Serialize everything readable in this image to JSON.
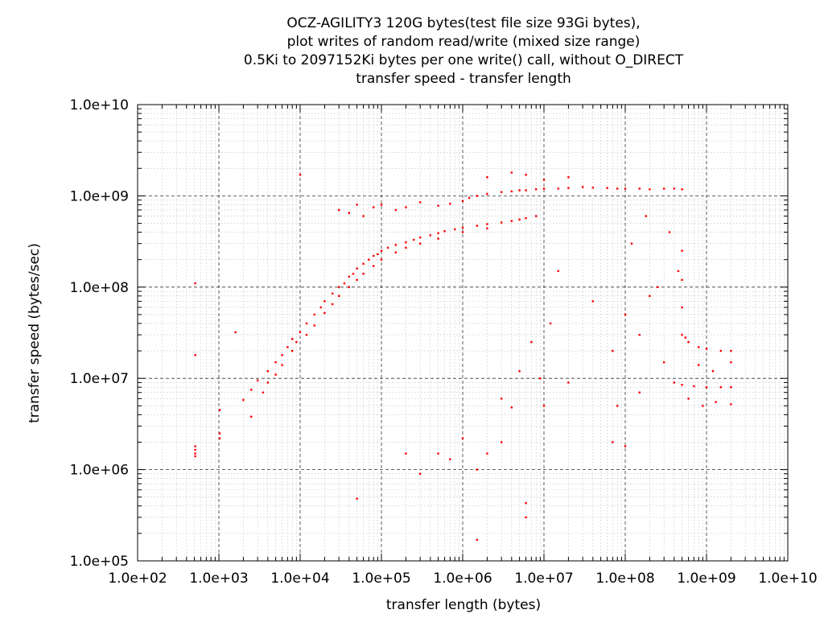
{
  "chart_data": {
    "type": "scatter",
    "title_lines": [
      "OCZ-AGILITY3 120G bytes(test file size 93Gi bytes),",
      "plot writes of random read/write (mixed size range)",
      "0.5Ki to 2097152Ki bytes per one write() call, without O_DIRECT",
      "transfer speed - transfer length"
    ],
    "xlabel": "transfer length (bytes)",
    "ylabel": "transfer speed (bytes/sec)",
    "x_scale": "log",
    "y_scale": "log",
    "xlim": [
      100,
      10000000000
    ],
    "ylim": [
      100000,
      10000000000
    ],
    "x_tick_values": [
      100,
      1000,
      10000,
      100000,
      1000000,
      10000000,
      100000000,
      1000000000,
      10000000000
    ],
    "x_tick_labels": [
      "1.0e+02",
      "1.0e+03",
      "1.0e+04",
      "1.0e+05",
      "1.0e+06",
      "1.0e+07",
      "1.0e+08",
      "1.0e+09",
      "1.0e+10"
    ],
    "y_tick_values": [
      100000,
      1000000,
      10000000,
      100000000,
      1000000000,
      10000000000
    ],
    "y_tick_labels": [
      "1.0e+05",
      "1.0e+06",
      "1.0e+07",
      "1.0e+08",
      "1.0e+09",
      "1.0e+10"
    ],
    "grid": true,
    "marker_color": "#ff0000",
    "series": [
      {
        "points": [
          [
            512,
            110000000
          ],
          [
            512,
            18000000
          ],
          [
            512,
            1800000
          ],
          [
            512,
            1650000
          ],
          [
            512,
            1500000
          ],
          [
            512,
            1400000
          ],
          [
            1024,
            4500000
          ],
          [
            1024,
            2500000
          ],
          [
            1024,
            2200000
          ],
          [
            1600,
            32000000
          ],
          [
            2000,
            5800000
          ],
          [
            2500,
            7500000
          ],
          [
            2500,
            3800000
          ],
          [
            3000,
            9500000
          ],
          [
            3500,
            7000000
          ],
          [
            4000,
            12000000
          ],
          [
            4000,
            9000000
          ],
          [
            5000,
            15000000
          ],
          [
            5000,
            11000000
          ],
          [
            6000,
            18000000
          ],
          [
            6000,
            14000000
          ],
          [
            7000,
            22000000
          ],
          [
            8000,
            27000000
          ],
          [
            8000,
            20000000
          ],
          [
            9000,
            25000000
          ],
          [
            10000,
            1700000000
          ],
          [
            10000,
            32000000
          ],
          [
            12000,
            40000000
          ],
          [
            12000,
            30000000
          ],
          [
            15000,
            50000000
          ],
          [
            15000,
            38000000
          ],
          [
            18000,
            60000000
          ],
          [
            20000,
            70000000
          ],
          [
            20000,
            52000000
          ],
          [
            25000,
            85000000
          ],
          [
            25000,
            65000000
          ],
          [
            30000,
            100000000
          ],
          [
            30000,
            80000000
          ],
          [
            35000,
            110000000
          ],
          [
            40000,
            130000000
          ],
          [
            40000,
            100000000
          ],
          [
            45000,
            140000000
          ],
          [
            50000,
            160000000
          ],
          [
            50000,
            120000000
          ],
          [
            60000,
            180000000
          ],
          [
            60000,
            140000000
          ],
          [
            70000,
            200000000
          ],
          [
            80000,
            220000000
          ],
          [
            80000,
            170000000
          ],
          [
            90000,
            230000000
          ],
          [
            100000,
            250000000
          ],
          [
            100000,
            200000000
          ],
          [
            120000,
            270000000
          ],
          [
            150000,
            290000000
          ],
          [
            150000,
            240000000
          ],
          [
            200000,
            310000000
          ],
          [
            200000,
            270000000
          ],
          [
            250000,
            330000000
          ],
          [
            300000,
            350000000
          ],
          [
            300000,
            300000000
          ],
          [
            400000,
            370000000
          ],
          [
            500000,
            390000000
          ],
          [
            500000,
            340000000
          ],
          [
            600000,
            410000000
          ],
          [
            800000,
            430000000
          ],
          [
            1000000,
            450000000
          ],
          [
            1000000,
            400000000
          ],
          [
            1500000,
            470000000
          ],
          [
            2000000,
            490000000
          ],
          [
            2000000,
            440000000
          ],
          [
            3000000,
            510000000
          ],
          [
            4000000,
            530000000
          ],
          [
            5000000,
            550000000
          ],
          [
            6000000,
            570000000
          ],
          [
            8000000,
            600000000
          ],
          [
            30000,
            700000000
          ],
          [
            40000,
            650000000
          ],
          [
            50000,
            800000000
          ],
          [
            60000,
            600000000
          ],
          [
            80000,
            750000000
          ],
          [
            100000,
            800000000
          ],
          [
            150000,
            700000000
          ],
          [
            200000,
            750000000
          ],
          [
            300000,
            850000000
          ],
          [
            500000,
            780000000
          ],
          [
            700000,
            820000000
          ],
          [
            1000000,
            880000000
          ],
          [
            1200000,
            950000000
          ],
          [
            1500000,
            1000000000
          ],
          [
            2000000,
            1050000000
          ],
          [
            3000000,
            1100000000
          ],
          [
            4000000,
            1120000000
          ],
          [
            5000000,
            1150000000
          ],
          [
            6000000,
            1150000000
          ],
          [
            8000000,
            1180000000
          ],
          [
            10000000,
            1200000000
          ],
          [
            15000000,
            1200000000
          ],
          [
            20000000,
            1220000000
          ],
          [
            30000000,
            1250000000
          ],
          [
            40000000,
            1230000000
          ],
          [
            60000000,
            1220000000
          ],
          [
            80000000,
            1200000000
          ],
          [
            100000000,
            1200000000
          ],
          [
            150000000,
            1200000000
          ],
          [
            200000000,
            1180000000
          ],
          [
            300000000,
            1200000000
          ],
          [
            400000000,
            1200000000
          ],
          [
            500000000,
            1180000000
          ],
          [
            2000000,
            1600000000
          ],
          [
            4000000,
            1800000000
          ],
          [
            6000000,
            1700000000
          ],
          [
            10000000,
            1500000000
          ],
          [
            20000000,
            1600000000
          ],
          [
            500000000,
            250000000
          ],
          [
            500000000,
            120000000
          ],
          [
            500000000,
            60000000
          ],
          [
            500000000,
            30000000
          ],
          [
            550000000,
            28000000
          ],
          [
            600000000,
            25000000
          ],
          [
            800000000,
            22000000
          ],
          [
            1000000000,
            21000000
          ],
          [
            1500000000,
            20000000
          ],
          [
            2000000000,
            20000000
          ],
          [
            400000000,
            9000000
          ],
          [
            500000000,
            8500000
          ],
          [
            700000000,
            8200000
          ],
          [
            1000000000,
            8000000
          ],
          [
            1500000000,
            8000000
          ],
          [
            2000000000,
            8000000
          ],
          [
            600000000,
            6000000
          ],
          [
            900000000,
            5000000
          ],
          [
            1300000000,
            5500000
          ],
          [
            2000000000,
            5200000
          ],
          [
            2000000000,
            15000000
          ],
          [
            1200000000,
            12000000
          ],
          [
            800000000,
            14000000
          ],
          [
            100000000,
            50000000
          ],
          [
            150000000,
            30000000
          ],
          [
            200000000,
            80000000
          ],
          [
            300000000,
            15000000
          ],
          [
            70000000,
            20000000
          ],
          [
            40000000,
            70000000
          ],
          [
            20000000,
            9000000
          ],
          [
            10000000,
            5000000
          ],
          [
            80000000,
            5000000
          ],
          [
            150000000,
            7000000
          ],
          [
            250000000,
            100000000
          ],
          [
            350000000,
            400000000
          ],
          [
            450000000,
            150000000
          ],
          [
            120000000,
            300000000
          ],
          [
            180000000,
            600000000
          ],
          [
            15000000,
            150000000
          ],
          [
            12000000,
            40000000
          ],
          [
            9000000,
            10000000
          ],
          [
            7000000,
            25000000
          ],
          [
            5000000,
            12000000
          ],
          [
            3000000,
            6000000
          ],
          [
            4000000,
            4800000
          ],
          [
            3000000,
            2000000
          ],
          [
            2000000,
            1500000
          ],
          [
            1500000,
            1000000
          ],
          [
            1000000,
            2200000
          ],
          [
            700000,
            1300000
          ],
          [
            500000,
            1500000
          ],
          [
            300000,
            900000
          ],
          [
            200000,
            1500000
          ],
          [
            50000,
            480000
          ],
          [
            6000000,
            300000
          ],
          [
            6000000,
            430000
          ],
          [
            1500000,
            170000
          ],
          [
            100000000,
            1800000
          ],
          [
            70000000,
            2000000
          ]
        ]
      }
    ]
  }
}
